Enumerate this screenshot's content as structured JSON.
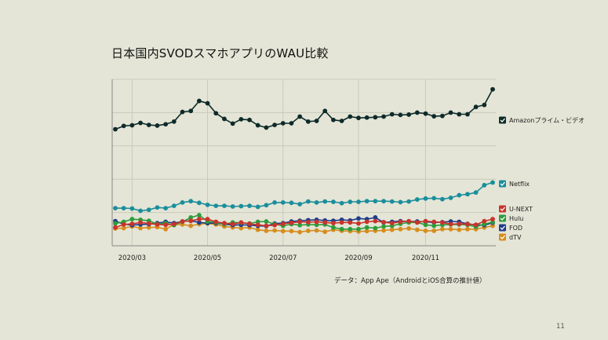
{
  "slide": {
    "title": "日本国内SVODスマホアプリのWAU比較",
    "source_note": "データ：App Ape（AndroidとiOS合算の推計値）",
    "page_number": "11"
  },
  "colors": {
    "background": "#e4e5d6",
    "grid": "#c9cab9",
    "axis": "#888888"
  },
  "chart_data": {
    "type": "line",
    "title": "",
    "xlabel": "",
    "ylabel": "",
    "x_ticks": [
      "2020/03",
      "2020/05",
      "2020/07",
      "2020/09",
      "2020/11"
    ],
    "x_tick_index": [
      2,
      11,
      20,
      29,
      37
    ],
    "y_ticks": [],
    "ylim": [
      0,
      5
    ],
    "grid": true,
    "legend_position": "right",
    "series": [
      {
        "name": "Amazonプライム・ビデオ",
        "color": "#0e2a2a",
        "values": [
          3.5,
          3.6,
          3.62,
          3.69,
          3.63,
          3.61,
          3.65,
          3.73,
          4.02,
          4.05,
          4.35,
          4.28,
          3.98,
          3.81,
          3.67,
          3.8,
          3.78,
          3.62,
          3.55,
          3.63,
          3.68,
          3.68,
          3.88,
          3.73,
          3.75,
          4.05,
          3.78,
          3.75,
          3.88,
          3.84,
          3.85,
          3.86,
          3.88,
          3.95,
          3.93,
          3.94,
          4.0,
          3.97,
          3.89,
          3.9,
          4.0,
          3.95,
          3.95,
          4.17,
          4.23,
          4.7
        ]
      },
      {
        "name": "Netflix",
        "color": "#1a8e9c",
        "values": [
          1.13,
          1.13,
          1.12,
          1.05,
          1.08,
          1.15,
          1.13,
          1.2,
          1.3,
          1.34,
          1.29,
          1.23,
          1.2,
          1.2,
          1.18,
          1.19,
          1.2,
          1.17,
          1.22,
          1.3,
          1.3,
          1.29,
          1.25,
          1.33,
          1.3,
          1.33,
          1.32,
          1.28,
          1.32,
          1.32,
          1.34,
          1.34,
          1.34,
          1.33,
          1.31,
          1.33,
          1.39,
          1.42,
          1.43,
          1.4,
          1.44,
          1.52,
          1.55,
          1.6,
          1.82,
          1.9
        ]
      },
      {
        "name": "U-NEXT",
        "color": "#c9332b",
        "values": [
          0.55,
          0.64,
          0.66,
          0.7,
          0.67,
          0.64,
          0.63,
          0.65,
          0.73,
          0.75,
          0.8,
          0.8,
          0.72,
          0.68,
          0.65,
          0.7,
          0.66,
          0.63,
          0.6,
          0.62,
          0.66,
          0.69,
          0.72,
          0.71,
          0.72,
          0.7,
          0.68,
          0.7,
          0.7,
          0.67,
          0.72,
          0.74,
          0.71,
          0.68,
          0.72,
          0.74,
          0.7,
          0.74,
          0.72,
          0.7,
          0.65,
          0.66,
          0.65,
          0.63,
          0.74,
          0.8
        ]
      },
      {
        "name": "Hulu",
        "color": "#2e9c3c",
        "values": [
          0.67,
          0.72,
          0.8,
          0.78,
          0.75,
          0.65,
          0.68,
          0.62,
          0.72,
          0.85,
          0.92,
          0.73,
          0.7,
          0.65,
          0.7,
          0.69,
          0.67,
          0.72,
          0.73,
          0.65,
          0.6,
          0.65,
          0.62,
          0.64,
          0.63,
          0.64,
          0.55,
          0.5,
          0.5,
          0.5,
          0.55,
          0.53,
          0.58,
          0.6,
          0.66,
          0.7,
          0.7,
          0.63,
          0.6,
          0.63,
          0.64,
          0.64,
          0.63,
          0.57,
          0.65,
          0.71
        ]
      },
      {
        "name": "FOD",
        "color": "#1f3d8a",
        "values": [
          0.74,
          0.65,
          0.62,
          0.64,
          0.65,
          0.68,
          0.72,
          0.68,
          0.73,
          0.75,
          0.7,
          0.68,
          0.68,
          0.65,
          0.62,
          0.63,
          0.62,
          0.6,
          0.59,
          0.67,
          0.68,
          0.73,
          0.75,
          0.77,
          0.78,
          0.76,
          0.75,
          0.78,
          0.76,
          0.82,
          0.8,
          0.85,
          0.7,
          0.72,
          0.74,
          0.73,
          0.73,
          0.72,
          0.7,
          0.71,
          0.73,
          0.72,
          0.66,
          0.63,
          0.62,
          0.69
        ]
      },
      {
        "name": "dTV",
        "color": "#d78c1e",
        "values": [
          0.52,
          0.53,
          0.58,
          0.53,
          0.55,
          0.56,
          0.5,
          0.64,
          0.64,
          0.6,
          0.65,
          0.67,
          0.64,
          0.58,
          0.55,
          0.53,
          0.55,
          0.48,
          0.45,
          0.46,
          0.44,
          0.44,
          0.41,
          0.45,
          0.46,
          0.42,
          0.48,
          0.45,
          0.44,
          0.43,
          0.44,
          0.45,
          0.46,
          0.48,
          0.5,
          0.52,
          0.48,
          0.45,
          0.45,
          0.5,
          0.5,
          0.48,
          0.5,
          0.5,
          0.55,
          0.6
        ]
      }
    ]
  }
}
